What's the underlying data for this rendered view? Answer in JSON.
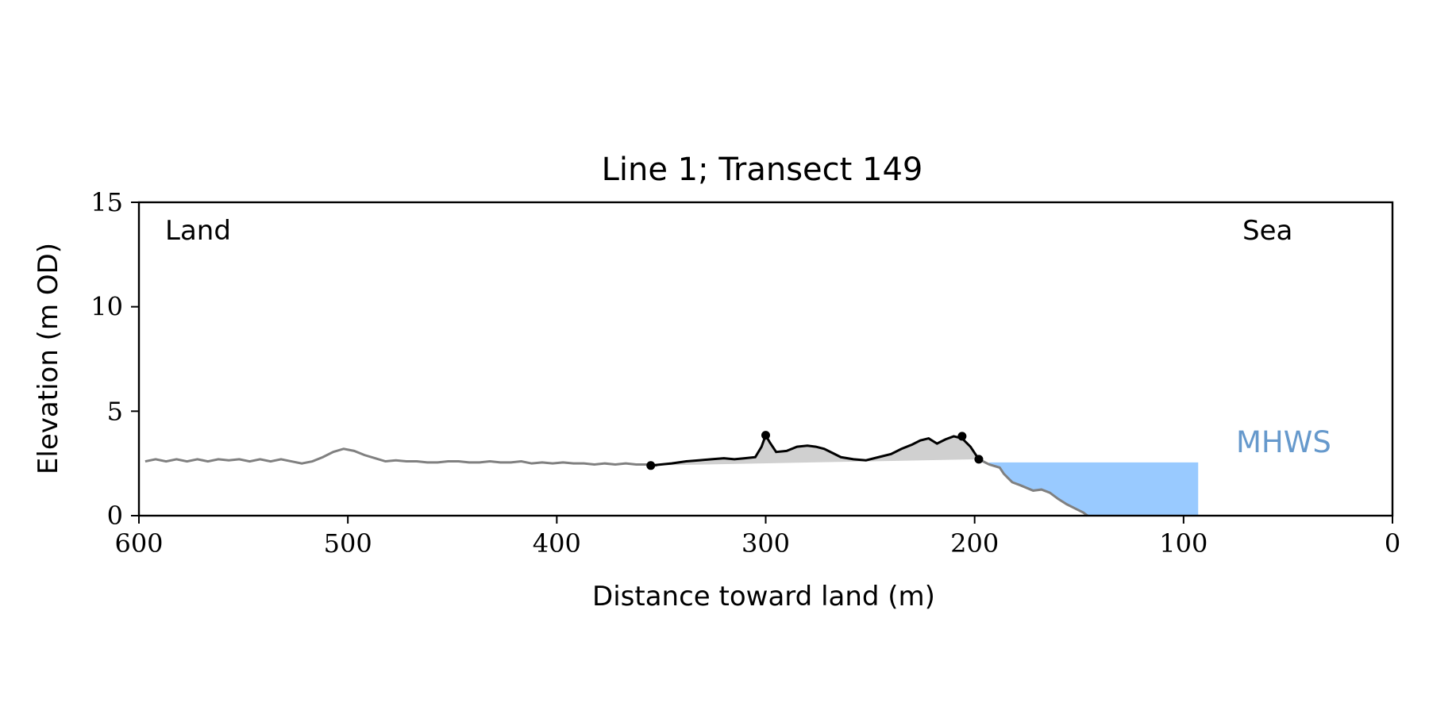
{
  "colors": {
    "profile_gray": "#808080",
    "dune_black": "#000000",
    "dune_fill": "#d0d0d0",
    "water_fill": "#99caff",
    "mhws_text": "#6699cc"
  },
  "chart_data": {
    "type": "line",
    "title": "Line 1; Transect 149",
    "xlabel": "Distance toward land (m)",
    "ylabel": "Elevation (m OD)",
    "xlim": [
      600,
      0
    ],
    "ylim": [
      0,
      15
    ],
    "xticks": [
      600,
      500,
      400,
      300,
      200,
      100,
      0
    ],
    "yticks": [
      0,
      5,
      10,
      15
    ],
    "grid": false,
    "annotations": {
      "land": "Land",
      "sea": "Sea",
      "mhws_label": "MHWS"
    },
    "mhws": {
      "elevation": 2.55,
      "x_from": 193,
      "x_to": 93
    },
    "series": [
      {
        "role": "full-profile",
        "x": [
          597,
          592,
          587,
          582,
          577,
          572,
          567,
          562,
          557,
          552,
          547,
          542,
          537,
          532,
          527,
          522,
          517,
          512,
          507,
          502,
          497,
          492,
          487,
          482,
          477,
          472,
          467,
          462,
          457,
          452,
          447,
          442,
          437,
          432,
          427,
          422,
          417,
          412,
          407,
          402,
          397,
          392,
          387,
          382,
          377,
          372,
          367,
          362,
          357,
          352
        ],
        "y": [
          2.6,
          2.7,
          2.6,
          2.7,
          2.6,
          2.7,
          2.6,
          2.7,
          2.65,
          2.7,
          2.6,
          2.7,
          2.6,
          2.7,
          2.6,
          2.5,
          2.6,
          2.8,
          3.05,
          3.2,
          3.1,
          2.9,
          2.75,
          2.6,
          2.65,
          2.6,
          2.6,
          2.55,
          2.55,
          2.6,
          2.6,
          2.55,
          2.55,
          2.6,
          2.55,
          2.55,
          2.6,
          2.5,
          2.55,
          2.5,
          2.55,
          2.5,
          2.5,
          2.45,
          2.5,
          2.45,
          2.5,
          2.45,
          2.45,
          2.4
        ]
      },
      {
        "role": "dune",
        "x": [
          355,
          345,
          338,
          332,
          326,
          320,
          315,
          310,
          305,
          302,
          300,
          298,
          295,
          290,
          285,
          280,
          276,
          272,
          268,
          264,
          258,
          252,
          246,
          240,
          235,
          230,
          226,
          222,
          218,
          214,
          210,
          206,
          202,
          198
        ],
        "y": [
          2.4,
          2.5,
          2.6,
          2.65,
          2.7,
          2.75,
          2.7,
          2.75,
          2.8,
          3.3,
          3.85,
          3.5,
          3.05,
          3.1,
          3.3,
          3.35,
          3.3,
          3.2,
          3.0,
          2.8,
          2.7,
          2.65,
          2.8,
          2.95,
          3.2,
          3.4,
          3.6,
          3.7,
          3.45,
          3.65,
          3.8,
          3.7,
          3.3,
          2.7
        ]
      },
      {
        "role": "seaward",
        "x": [
          198,
          193,
          188,
          186,
          182,
          178,
          172,
          168,
          164,
          160,
          156,
          152,
          148,
          146
        ],
        "y": [
          2.7,
          2.45,
          2.3,
          2.0,
          1.6,
          1.45,
          1.2,
          1.25,
          1.1,
          0.8,
          0.55,
          0.35,
          0.15,
          0.0
        ]
      }
    ],
    "markers": {
      "x": [
        355,
        300,
        206,
        198
      ],
      "y": [
        2.4,
        3.85,
        3.8,
        2.7
      ]
    }
  }
}
